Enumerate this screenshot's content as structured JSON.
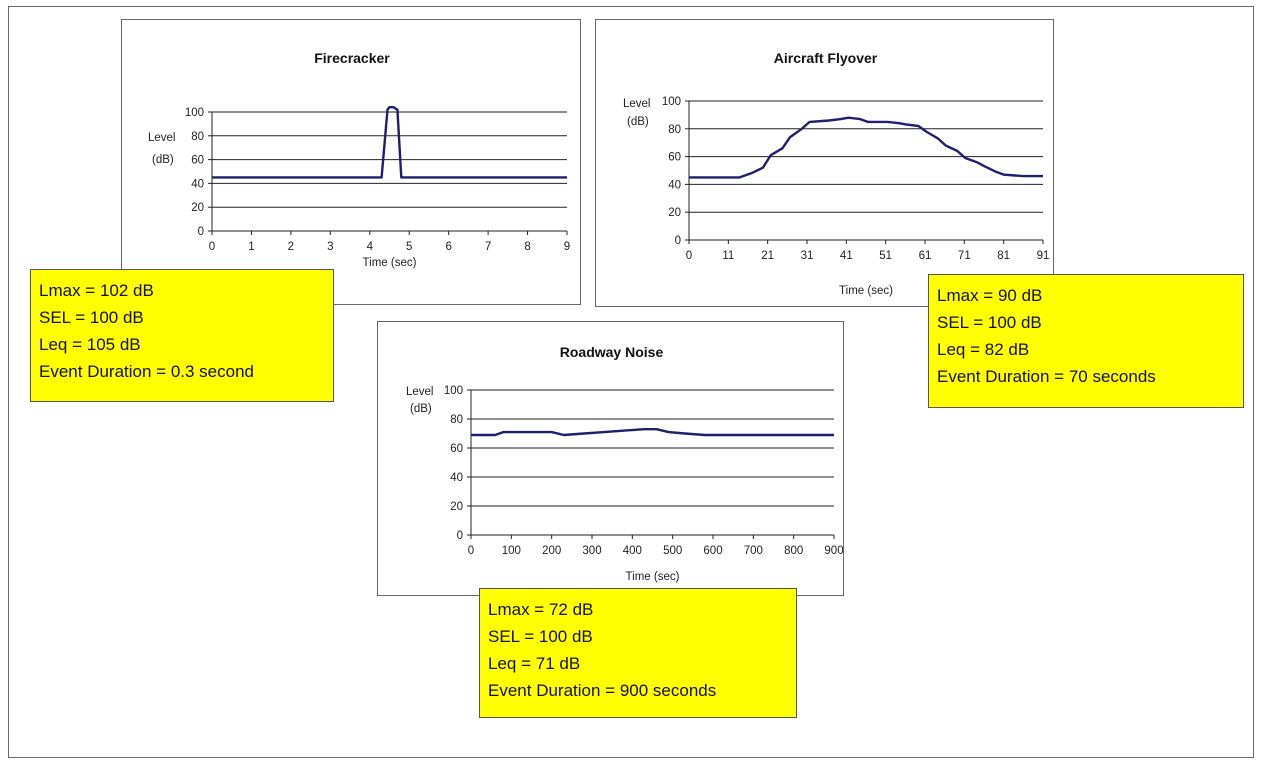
{
  "charts": [
    {
      "id": "firecracker",
      "title": "Firecracker",
      "ylabel_lines": [
        "Level",
        "(dB)"
      ],
      "xlabel": "Time (sec)",
      "line_color": "#1f1f6e",
      "stats": [
        "Lmax = 102 dB",
        "SEL = 100 dB",
        "Leq = 105 dB",
        "Event Duration = 0.3 second"
      ]
    },
    {
      "id": "aircraft",
      "title": "Aircraft Flyover",
      "ylabel_lines": [
        "Level",
        "(dB)"
      ],
      "xlabel": "Time (sec)",
      "line_color": "#1f1f6e",
      "stats": [
        "Lmax = 90 dB",
        "SEL = 100 dB",
        "Leq = 82 dB",
        "Event Duration = 70 seconds"
      ]
    },
    {
      "id": "roadway",
      "title": "Roadway Noise",
      "ylabel_lines": [
        "Level",
        "(dB)"
      ],
      "xlabel": "Time (sec)",
      "line_color": "#1f1f6e",
      "stats": [
        "Lmax = 72 dB",
        "SEL = 100 dB",
        "Leq = 71 dB",
        "Event Duration = 900 seconds"
      ]
    }
  ],
  "chart_data": [
    {
      "type": "line",
      "title": "Firecracker",
      "xlabel": "Time (sec)",
      "ylabel": "Level (dB)",
      "xlim": [
        0,
        9
      ],
      "ylim": [
        0,
        100
      ],
      "xticks": [
        "0",
        "1",
        "2",
        "3",
        "4",
        "5",
        "6",
        "7",
        "8",
        "9"
      ],
      "yticks": [
        "0",
        "20",
        "40",
        "60",
        "80",
        "100"
      ],
      "grid": "horizontal",
      "x": [
        0,
        4.3,
        4.45,
        4.5,
        4.6,
        4.7,
        4.8,
        5.0,
        9
      ],
      "y": [
        45,
        45,
        102,
        104,
        104,
        102,
        45,
        45,
        45
      ]
    },
    {
      "type": "line",
      "title": "Aircraft Flyover",
      "xlabel": "Time (sec)",
      "ylabel": "Level (dB)",
      "xlim": [
        0,
        91
      ],
      "ylim": [
        0,
        100
      ],
      "xticks": [
        "0",
        "11",
        "21",
        "31",
        "41",
        "51",
        "61",
        "71",
        "81",
        "91"
      ],
      "yticks": [
        "0",
        "20",
        "40",
        "60",
        "80",
        "100"
      ],
      "grid": "horizontal",
      "x": [
        0,
        13,
        16,
        19,
        21,
        24,
        26,
        29,
        31,
        36,
        39,
        41,
        44,
        46,
        51,
        54,
        56,
        59,
        61,
        64,
        66,
        69,
        71,
        74,
        76,
        79,
        81,
        86,
        91
      ],
      "y": [
        45,
        45,
        48,
        52,
        61,
        66,
        74,
        80,
        85,
        86,
        87,
        88,
        87,
        85,
        85,
        84,
        83,
        82,
        78,
        73,
        68,
        64,
        59,
        56,
        53,
        49,
        47,
        46,
        46
      ]
    },
    {
      "type": "line",
      "title": "Roadway Noise",
      "xlabel": "Time (sec)",
      "ylabel": "Level (dB)",
      "xlim": [
        0,
        900
      ],
      "ylim": [
        0,
        100
      ],
      "xticks": [
        "0",
        "100",
        "200",
        "300",
        "400",
        "500",
        "600",
        "700",
        "800",
        "900"
      ],
      "yticks": [
        "0",
        "20",
        "40",
        "60",
        "80",
        "100"
      ],
      "grid": "horizontal",
      "x": [
        0,
        60,
        80,
        150,
        200,
        230,
        280,
        330,
        380,
        430,
        460,
        490,
        530,
        580,
        650,
        750,
        850,
        900
      ],
      "y": [
        69,
        69,
        71,
        71,
        71,
        69,
        70,
        71,
        72,
        73,
        73,
        71,
        70,
        69,
        69,
        69,
        69,
        69
      ]
    }
  ]
}
